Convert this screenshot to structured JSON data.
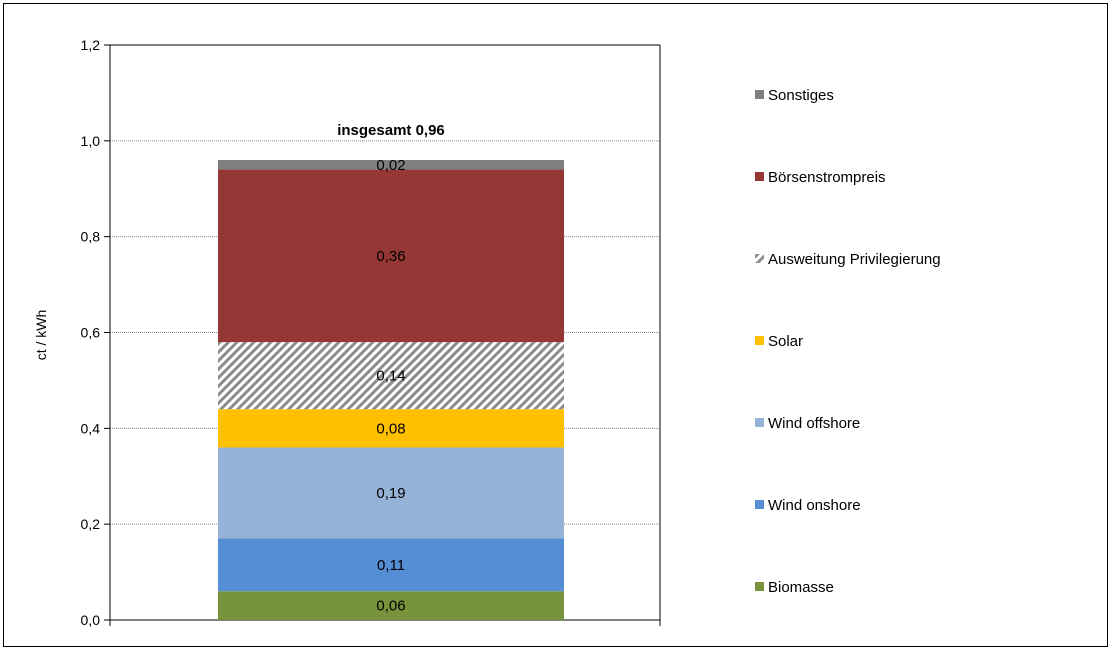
{
  "chart_data": {
    "type": "bar",
    "stacked": true,
    "categories": [
      ""
    ],
    "ylabel": "ct / kWh",
    "ylim": [
      0,
      1.2
    ],
    "y_ticks": [
      "0,0",
      "0,2",
      "0,4",
      "0,6",
      "0,8",
      "1,0",
      "1,2"
    ],
    "y_tick_values": [
      0,
      0.2,
      0.4,
      0.6,
      0.8,
      1.0,
      1.2
    ],
    "grid": true,
    "legend_position": "right",
    "total_label": "insgesamt 0,96",
    "series": [
      {
        "name": "Biomasse",
        "values": [
          0.06
        ],
        "label": "0,06",
        "color": "#77933C",
        "pattern": false
      },
      {
        "name": "Wind onshore",
        "values": [
          0.11
        ],
        "label": "0,11",
        "color": "#558ED5",
        "pattern": false
      },
      {
        "name": "Wind offshore",
        "values": [
          0.19
        ],
        "label": "0,19",
        "color": "#95B3D7",
        "pattern": false
      },
      {
        "name": "Solar",
        "values": [
          0.08
        ],
        "label": "0,08",
        "color": "#FFC000",
        "pattern": false
      },
      {
        "name": "Ausweitung Privilegierung",
        "values": [
          0.14
        ],
        "label": "0,14",
        "color": "#A6A6A6",
        "pattern": true
      },
      {
        "name": "Börsenstrompreis",
        "values": [
          0.36
        ],
        "label": "0,36",
        "color": "#953735",
        "pattern": false
      },
      {
        "name": "Sonstiges",
        "values": [
          0.02
        ],
        "label": "0,02",
        "color": "#7F7F7F",
        "pattern": false
      }
    ]
  }
}
